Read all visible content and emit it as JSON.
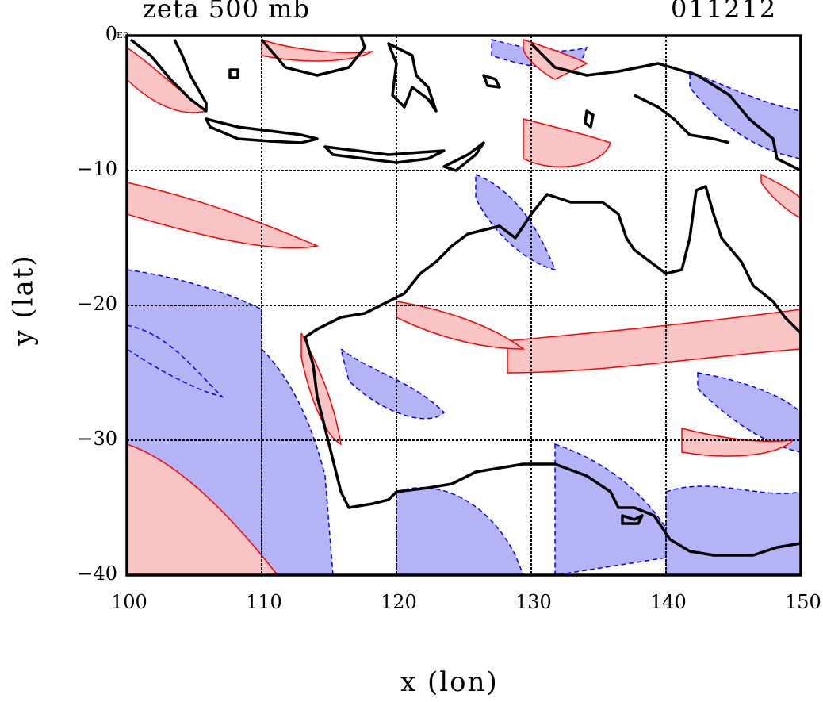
{
  "chart_data": {
    "type": "contour map",
    "title_left": "zeta 500 mb",
    "title_right": "011212",
    "xlabel": "x (lon)",
    "ylabel": "y (lat)",
    "xlim": [
      100,
      150
    ],
    "ylim": [
      -40,
      0
    ],
    "x_ticks": [
      "100",
      "110",
      "120",
      "130",
      "140",
      "150"
    ],
    "y_ticks": [
      "0",
      "−10",
      "−20",
      "−30",
      "−40"
    ],
    "x_tick_values": [
      100,
      110,
      120,
      130,
      140,
      150
    ],
    "y_tick_values": [
      0,
      -10,
      -20,
      -30,
      -40
    ],
    "corner_mark": "E0",
    "grid": true,
    "colors": {
      "positive_fill": "#f9c4c4",
      "positive_line": "#ff0000",
      "negative_fill": "#b3b3f5",
      "negative_line": "#0000ff",
      "coast": "#000000",
      "grid": "#000000"
    }
  }
}
